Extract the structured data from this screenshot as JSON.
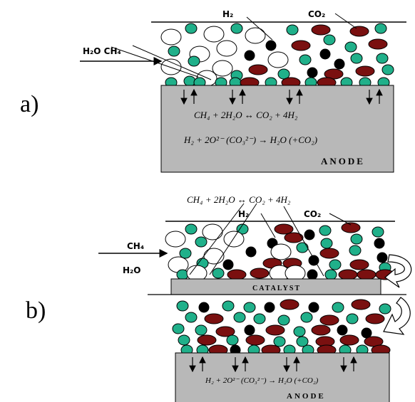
{
  "panel_a": {
    "label": "a)",
    "h2": "H₂",
    "co2": "CO₂",
    "feed": "H₂O CH₄",
    "eq1": "CH₄ + 2H₂O ↔ CO₂ + 4H₂",
    "eq2": "H₂ + 2O²⁻ (CO₃²⁻) → H₂O (+CO₂)",
    "anode": "ANODE"
  },
  "panel_b": {
    "label": "b)",
    "eq_top": "CH₄ + 2H₂O ↔ CO₂ + 4H₂",
    "h2": "H₂",
    "co2": "CO₂",
    "ch4": "CH₄",
    "h2o": "H₂O",
    "catalyst": "CATALYST",
    "eq2": "H₂ + 2O²⁻ (CO₃²⁻) → H₂O (+CO₂)",
    "anode": "ANODE"
  },
  "colors": {
    "teal": "#20b08a",
    "maroon": "#7a1010",
    "black": "#000000",
    "white": "#ffffff",
    "box": "#b8b8b8"
  }
}
